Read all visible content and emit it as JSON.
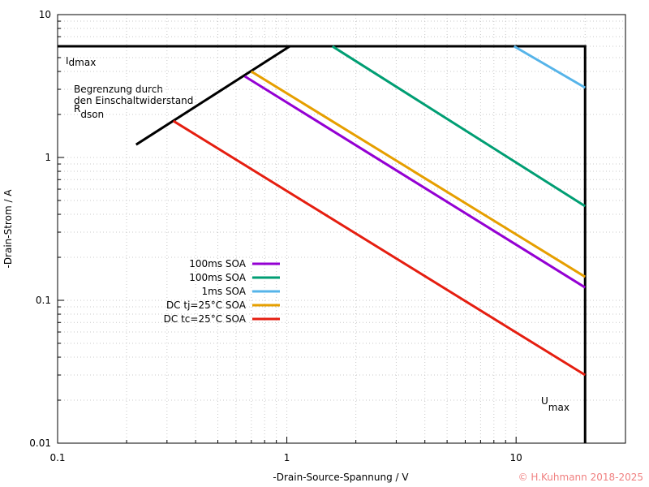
{
  "chart_data": {
    "type": "line",
    "x_label": "-Drain-Source-Spannung / V",
    "y_label": "-Drain-Strom / A",
    "xscale": "log",
    "yscale": "log",
    "xlim": [
      0.1,
      30
    ],
    "ylim": [
      0.01,
      10
    ],
    "xticks": [
      0.1,
      1,
      10
    ],
    "yticks": [
      0.01,
      0.1,
      1,
      10
    ],
    "grid": true,
    "minor_grid": true,
    "legend": "center",
    "boundary": {
      "color": "#000000",
      "x": [
        0.22,
        1.03,
        20,
        20
      ],
      "values": [
        1.23,
        6,
        6,
        0.01
      ]
    },
    "idmax_line": {
      "color": "#000000",
      "x": [
        0.1,
        1.03
      ],
      "values": [
        6,
        6
      ]
    },
    "series": [
      {
        "name": "100ms SOA",
        "color": "#9400d3",
        "x": [
          0.655,
          20
        ],
        "values": [
          3.7,
          0.123
        ]
      },
      {
        "name": "100ms SOA",
        "color": "#009e73",
        "x": [
          1.58,
          20
        ],
        "values": [
          6,
          0.456
        ]
      },
      {
        "name": "1ms SOA",
        "color": "#56b4e9",
        "x": [
          9.8,
          20
        ],
        "values": [
          6,
          3.08
        ]
      },
      {
        "name": "DC  tj=25°C SOA",
        "color": "#e69f00",
        "x": [
          0.7,
          20
        ],
        "values": [
          4.0,
          0.146
        ]
      },
      {
        "name": "DC  tc=25°C SOA",
        "color": "#e51e10",
        "x": [
          0.32,
          20
        ],
        "values": [
          1.8,
          0.03
        ]
      }
    ],
    "annotations": {
      "idmax": {
        "base": "I",
        "sub": "dmax"
      },
      "rdson": {
        "lines": [
          "Begrenzung durch",
          "den Einschaltwiderstand"
        ],
        "base": "R",
        "sub": "dson"
      },
      "umax": {
        "base": "U",
        "sub": "max"
      }
    },
    "copyright": "© H.Kuhmann 2018-2025"
  }
}
